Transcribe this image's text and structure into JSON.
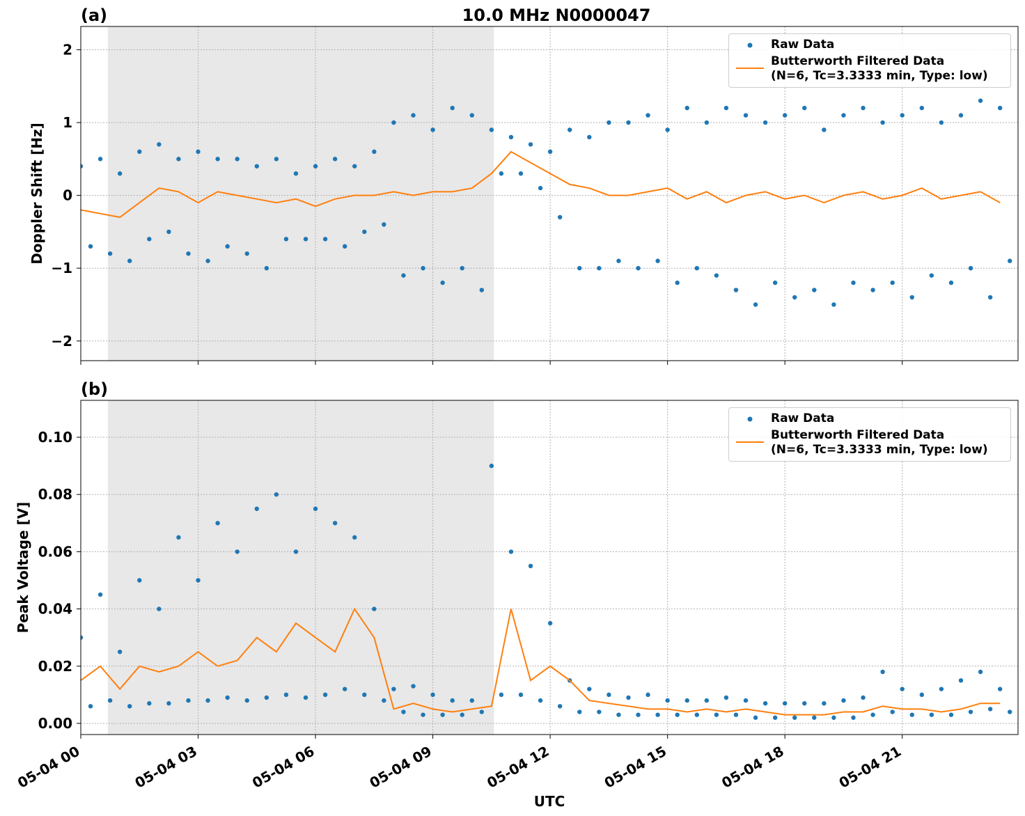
{
  "chart_data": [
    {
      "type": "line",
      "label": "(a)",
      "title": "10.0 MHz N0000047",
      "ylabel": "Doppler Shift [Hz]",
      "xlim": [
        0,
        23.96
      ],
      "ylim": [
        -2.27,
        2.32
      ],
      "yticks": [
        {
          "value": -2,
          "label": "−2"
        },
        {
          "value": -1,
          "label": "−1"
        },
        0,
        1,
        2
      ],
      "grid": true,
      "legend": "upper right",
      "shade": [
        0.69,
        10.56
      ],
      "shade_color": "#e8e8e8",
      "series": [
        {
          "name": "Raw Data",
          "mode": "markers",
          "color": "#1f77b4",
          "x": [
            0,
            0.25,
            0.5,
            0.75,
            1,
            1.25,
            1.5,
            1.75,
            2,
            2.25,
            2.5,
            2.75,
            3,
            3.25,
            3.5,
            3.75,
            4,
            4.25,
            4.5,
            4.75,
            5,
            5.25,
            5.5,
            5.75,
            6,
            6.25,
            6.5,
            6.75,
            7,
            7.25,
            7.5,
            7.75,
            8,
            8.25,
            8.5,
            8.75,
            9,
            9.25,
            9.5,
            9.75,
            10,
            10.25,
            10.5,
            10.75,
            11,
            11.25,
            11.5,
            11.75,
            12,
            12.25,
            12.5,
            12.75,
            13,
            13.25,
            13.5,
            13.75,
            14,
            14.25,
            14.5,
            14.75,
            15,
            15.25,
            15.5,
            15.75,
            16,
            16.25,
            16.5,
            16.75,
            17,
            17.25,
            17.5,
            17.75,
            18,
            18.25,
            18.5,
            18.75,
            19,
            19.25,
            19.5,
            19.75,
            20,
            20.25,
            20.5,
            20.75,
            21,
            21.25,
            21.5,
            21.75,
            22,
            22.25,
            22.5,
            22.75,
            23,
            23.25,
            23.5,
            23.75
          ],
          "values": [
            0.4,
            -0.7,
            0.5,
            -0.8,
            0.3,
            -0.9,
            0.6,
            -0.6,
            0.7,
            -0.5,
            0.5,
            -0.8,
            0.6,
            -0.9,
            0.5,
            -0.7,
            0.5,
            -0.8,
            0.4,
            -1.0,
            0.5,
            -0.6,
            0.3,
            -0.6,
            0.4,
            -0.6,
            0.5,
            -0.7,
            0.4,
            -0.5,
            0.6,
            -0.4,
            1.0,
            -1.1,
            1.1,
            -1.0,
            0.9,
            -1.2,
            1.2,
            -1.0,
            1.1,
            -1.3,
            0.9,
            0.3,
            0.8,
            0.3,
            0.7,
            0.1,
            0.6,
            -0.3,
            0.9,
            -1.0,
            0.8,
            -1.0,
            1.0,
            -0.9,
            1.0,
            -1.0,
            1.1,
            -0.9,
            0.9,
            -1.2,
            1.2,
            -1.0,
            1.0,
            -1.1,
            1.2,
            -1.3,
            1.1,
            -1.5,
            1.0,
            -1.2,
            1.1,
            -1.4,
            1.2,
            -1.3,
            0.9,
            -1.5,
            1.1,
            -1.2,
            1.2,
            -1.3,
            1.0,
            -1.2,
            1.1,
            -1.4,
            1.2,
            -1.1,
            1.0,
            -1.2,
            1.1,
            -1.0,
            1.3,
            -1.4,
            1.2,
            -0.9
          ]
        },
        {
          "name": "Butterworth Filtered Data\n(N=6, Tc=3.3333 min, Type: low)",
          "mode": "line",
          "color": "#ff7f0e",
          "x": [
            0,
            0.5,
            1,
            1.5,
            2,
            2.5,
            3,
            3.5,
            4,
            4.5,
            5,
            5.5,
            6,
            6.5,
            7,
            7.5,
            8,
            8.5,
            9,
            9.5,
            10,
            10.5,
            11,
            11.5,
            12,
            12.5,
            13,
            13.5,
            14,
            14.5,
            15,
            15.5,
            16,
            16.5,
            17,
            17.5,
            18,
            18.5,
            19,
            19.5,
            20,
            20.5,
            21,
            21.5,
            22,
            22.5,
            23,
            23.5
          ],
          "values": [
            -0.2,
            -0.25,
            -0.3,
            -0.1,
            0.1,
            0.05,
            -0.1,
            0.05,
            0,
            -0.05,
            -0.1,
            -0.05,
            -0.15,
            -0.05,
            0,
            0,
            0.05,
            0,
            0.05,
            0.05,
            0.1,
            0.3,
            0.6,
            0.45,
            0.3,
            0.15,
            0.1,
            0,
            0,
            0.05,
            0.1,
            -0.05,
            0.05,
            -0.1,
            0,
            0.05,
            -0.05,
            0,
            -0.1,
            0,
            0.05,
            -0.05,
            0,
            0.1,
            -0.05,
            0,
            0.05,
            -0.1
          ]
        }
      ]
    },
    {
      "type": "line",
      "label": "(b)",
      "ylabel": "Peak Voltage [V]",
      "xlabel": "UTC",
      "xlim": [
        0,
        23.96
      ],
      "ylim": [
        -0.0039,
        0.1129
      ],
      "xticks": [
        {
          "value": 0,
          "label": "05-04 00"
        },
        {
          "value": 3,
          "label": "05-04 03"
        },
        {
          "value": 6,
          "label": "05-04 06"
        },
        {
          "value": 9,
          "label": "05-04 09"
        },
        {
          "value": 12,
          "label": "05-04 12"
        },
        {
          "value": 15,
          "label": "05-04 15"
        },
        {
          "value": 18,
          "label": "05-04 18"
        },
        {
          "value": 21,
          "label": "05-04 21"
        }
      ],
      "yticks": [
        {
          "value": 0,
          "label": "0.00"
        },
        0.02,
        0.04,
        0.06,
        0.08,
        {
          "value": 0.1,
          "label": "0.10"
        }
      ],
      "grid": true,
      "legend": "upper right",
      "shade": [
        0.69,
        10.56
      ],
      "shade_color": "#e8e8e8",
      "series": [
        {
          "name": "Raw Data",
          "mode": "markers",
          "color": "#1f77b4",
          "x": [
            0,
            0.25,
            0.5,
            0.75,
            1,
            1.25,
            1.5,
            1.75,
            2,
            2.25,
            2.5,
            2.75,
            3,
            3.25,
            3.5,
            3.75,
            4,
            4.25,
            4.5,
            4.75,
            5,
            5.25,
            5.5,
            5.75,
            6,
            6.25,
            6.5,
            6.75,
            7,
            7.25,
            7.5,
            7.75,
            8,
            8.25,
            8.5,
            8.75,
            9,
            9.25,
            9.5,
            9.75,
            10,
            10.25,
            10.5,
            10.75,
            11,
            11.25,
            11.5,
            11.75,
            12,
            12.25,
            12.5,
            12.75,
            13,
            13.25,
            13.5,
            13.75,
            14,
            14.25,
            14.5,
            14.75,
            15,
            15.25,
            15.5,
            15.75,
            16,
            16.25,
            16.5,
            16.75,
            17,
            17.25,
            17.5,
            17.75,
            18,
            18.25,
            18.5,
            18.75,
            19,
            19.25,
            19.5,
            19.75,
            20,
            20.25,
            20.5,
            20.75,
            21,
            21.25,
            21.5,
            21.75,
            22,
            22.25,
            22.5,
            22.75,
            23,
            23.25,
            23.5,
            23.75
          ],
          "values": [
            0.03,
            0.006,
            0.045,
            0.008,
            0.025,
            0.006,
            0.05,
            0.007,
            0.04,
            0.007,
            0.065,
            0.008,
            0.05,
            0.008,
            0.07,
            0.009,
            0.06,
            0.008,
            0.075,
            0.009,
            0.08,
            0.01,
            0.06,
            0.009,
            0.075,
            0.01,
            0.07,
            0.012,
            0.065,
            0.01,
            0.04,
            0.008,
            0.012,
            0.004,
            0.013,
            0.003,
            0.01,
            0.003,
            0.008,
            0.003,
            0.008,
            0.004,
            0.09,
            0.01,
            0.06,
            0.01,
            0.055,
            0.008,
            0.035,
            0.006,
            0.015,
            0.004,
            0.012,
            0.004,
            0.01,
            0.003,
            0.009,
            0.003,
            0.01,
            0.003,
            0.008,
            0.003,
            0.008,
            0.003,
            0.008,
            0.003,
            0.009,
            0.003,
            0.008,
            0.002,
            0.007,
            0.002,
            0.007,
            0.002,
            0.007,
            0.002,
            0.007,
            0.002,
            0.008,
            0.002,
            0.009,
            0.003,
            0.018,
            0.004,
            0.012,
            0.003,
            0.01,
            0.003,
            0.012,
            0.003,
            0.015,
            0.004,
            0.018,
            0.005,
            0.012,
            0.004
          ]
        },
        {
          "name": "Butterworth Filtered Data\n(N=6, Tc=3.3333 min, Type: low)",
          "mode": "line",
          "color": "#ff7f0e",
          "x": [
            0,
            0.5,
            1,
            1.5,
            2,
            2.5,
            3,
            3.5,
            4,
            4.5,
            5,
            5.5,
            6,
            6.5,
            7,
            7.5,
            8,
            8.5,
            9,
            9.5,
            10,
            10.5,
            11,
            11.5,
            12,
            12.5,
            13,
            13.5,
            14,
            14.5,
            15,
            15.5,
            16,
            16.5,
            17,
            17.5,
            18,
            18.5,
            19,
            19.5,
            20,
            20.5,
            21,
            21.5,
            22,
            22.5,
            23,
            23.5
          ],
          "values": [
            0.015,
            0.02,
            0.012,
            0.02,
            0.018,
            0.02,
            0.025,
            0.02,
            0.022,
            0.03,
            0.025,
            0.035,
            0.03,
            0.025,
            0.04,
            0.03,
            0.005,
            0.007,
            0.005,
            0.004,
            0.005,
            0.006,
            0.04,
            0.015,
            0.02,
            0.015,
            0.008,
            0.007,
            0.006,
            0.005,
            0.005,
            0.004,
            0.005,
            0.004,
            0.005,
            0.004,
            0.003,
            0.003,
            0.003,
            0.004,
            0.004,
            0.006,
            0.005,
            0.005,
            0.004,
            0.005,
            0.007,
            0.007
          ]
        }
      ]
    }
  ]
}
